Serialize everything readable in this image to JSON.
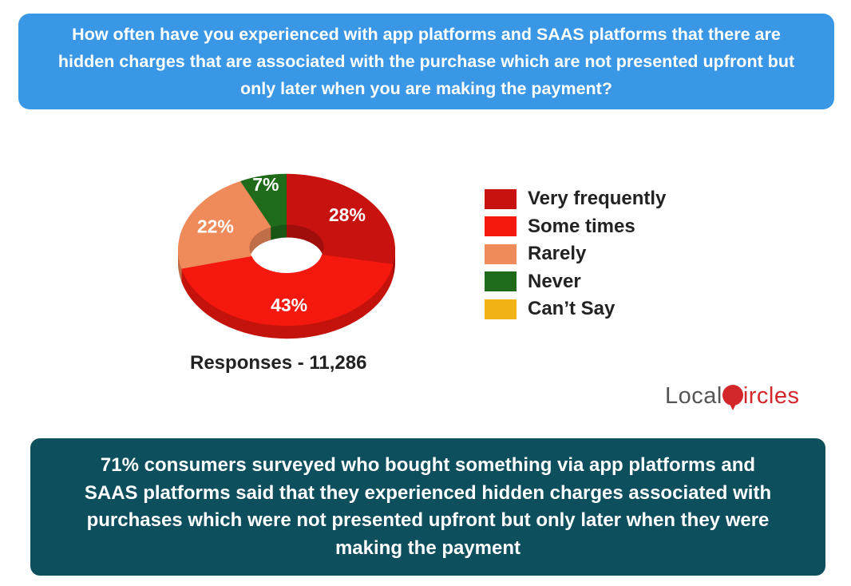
{
  "question": "How often have you experienced with app platforms and SAAS platforms that there are hidden charges that are associated with the purchase which are not presented upfront but only later when you are making the payment?",
  "chart_data": {
    "type": "pie",
    "style": "donut",
    "categories": [
      "Very frequently",
      "Some times",
      "Rarely",
      "Never",
      "Can't Say"
    ],
    "values": [
      28,
      43,
      22,
      7,
      0
    ],
    "labels": [
      "28%",
      "43%",
      "22%",
      "7%",
      ""
    ],
    "colors": [
      "#c8120f",
      "#f5180f",
      "#ef8a5a",
      "#1f6b1a",
      "#f0b313"
    ],
    "legend_position": "right"
  },
  "legend": [
    "Very frequently",
    "Some times",
    "Rarely",
    "Never",
    "Can’t Say"
  ],
  "responses": "Responses - 11,286",
  "logo": {
    "left": "Local",
    "right": "ircles"
  },
  "summary": "71% consumers surveyed who bought something via app platforms and SAAS platforms said that they experienced hidden charges associated with purchases which were not presented upfront but only later when they were making the payment"
}
